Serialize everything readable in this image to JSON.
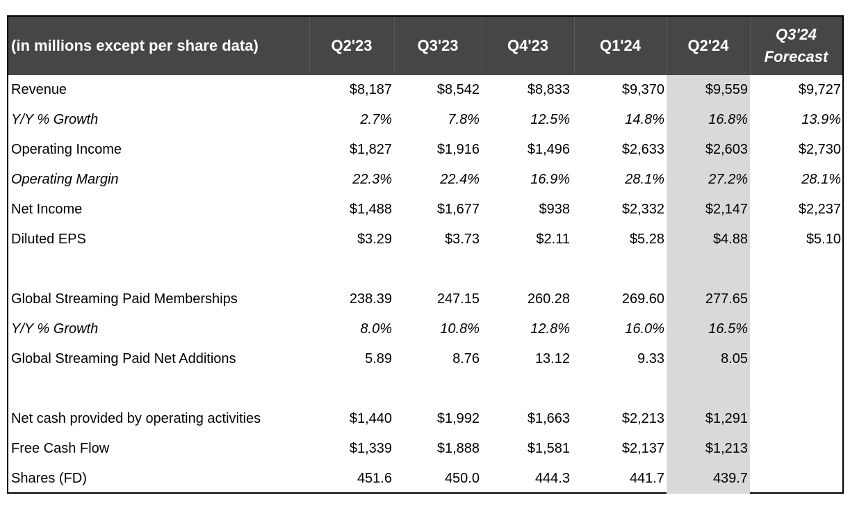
{
  "header": {
    "label": "(in millions except per share data)",
    "columns": [
      "Q2'23",
      "Q3'23",
      "Q4'23",
      "Q1'24",
      "Q2'24"
    ],
    "forecast_line1": "Q3'24",
    "forecast_line2": "Forecast"
  },
  "rows": [
    {
      "label": "Revenue",
      "values": [
        "$8,187",
        "$8,542",
        "$8,833",
        "$9,370",
        "$9,559",
        "$9,727"
      ]
    },
    {
      "label": "Y/Y % Growth",
      "values": [
        "2.7%",
        "7.8%",
        "12.5%",
        "14.8%",
        "16.8%",
        "13.9%"
      ]
    },
    {
      "label": "Operating Income",
      "values": [
        "$1,827",
        "$1,916",
        "$1,496",
        "$2,633",
        "$2,603",
        "$2,730"
      ]
    },
    {
      "label": "Operating Margin",
      "values": [
        "22.3%",
        "22.4%",
        "16.9%",
        "28.1%",
        "27.2%",
        "28.1%"
      ]
    },
    {
      "label": "Net Income",
      "values": [
        "$1,488",
        "$1,677",
        "$938",
        "$2,332",
        "$2,147",
        "$2,237"
      ]
    },
    {
      "label": "Diluted EPS",
      "values": [
        "$3.29",
        "$3.73",
        "$2.11",
        "$5.28",
        "$4.88",
        "$5.10"
      ]
    },
    {
      "label": "Global Streaming Paid Memberships",
      "values": [
        "238.39",
        "247.15",
        "260.28",
        "269.60",
        "277.65",
        ""
      ]
    },
    {
      "label": "Y/Y % Growth",
      "values": [
        "8.0%",
        "10.8%",
        "12.8%",
        "16.0%",
        "16.5%",
        ""
      ]
    },
    {
      "label": "Global Streaming Paid Net Additions",
      "values": [
        "5.89",
        "8.76",
        "13.12",
        "9.33",
        "8.05",
        ""
      ]
    },
    {
      "label": "Net cash provided by operating activities",
      "values": [
        "$1,440",
        "$1,992",
        "$1,663",
        "$2,213",
        "$1,291",
        ""
      ]
    },
    {
      "label": "Free Cash Flow",
      "values": [
        "$1,339",
        "$1,888",
        "$1,581",
        "$2,137",
        "$1,213",
        ""
      ]
    },
    {
      "label": "Shares (FD)",
      "values": [
        "451.6",
        "450.0",
        "444.3",
        "441.7",
        "439.7",
        ""
      ]
    }
  ],
  "colors": {
    "header_bg": "#464646",
    "header_text": "#ffffff",
    "highlight": "#d9d9d9"
  }
}
